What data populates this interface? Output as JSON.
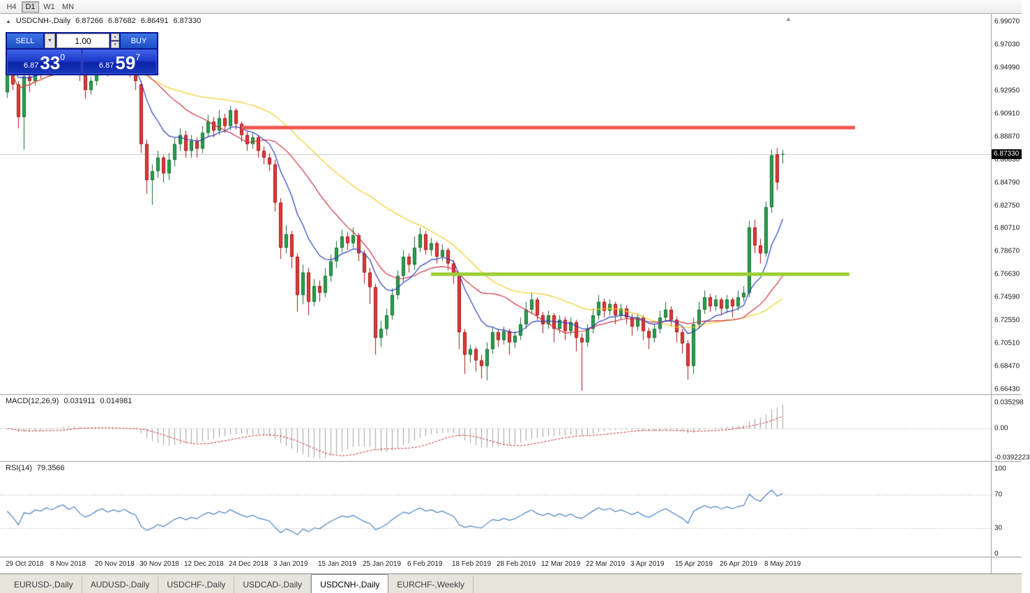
{
  "timeframe_toolbar": {
    "buttons": [
      "H4",
      "D1",
      "W1",
      "MN"
    ],
    "active": "D1"
  },
  "chart_header": {
    "collapse_icon": "▲",
    "title": "USDCNH-,Daily",
    "open": "6.87266",
    "high": "6.87682",
    "low": "6.86491",
    "close": "6.87330"
  },
  "trade_panel": {
    "sell_label": "SELL",
    "buy_label": "BUY",
    "volume": "1.00",
    "dropdown_icon": "▼",
    "spin_up_icon": "▲",
    "spin_down_icon": "▼",
    "sell_quote": "6.87330",
    "buy_quote": "6.87597",
    "sell_price": {
      "prefix": "6.87",
      "big": "33",
      "sup": "0"
    },
    "buy_price": {
      "prefix": "6.87",
      "big": "59",
      "sup": "7"
    }
  },
  "price_axis": {
    "labels": [
      "6.99070",
      "6.97030",
      "6.94990",
      "6.92950",
      "6.90910",
      "6.88870",
      "6.86830",
      "6.84790",
      "6.82750",
      "6.80710",
      "6.78670",
      "6.76630",
      "6.74590",
      "6.72550",
      "6.70510",
      "6.68470",
      "6.66430"
    ],
    "current_price_label": "6.87330"
  },
  "indicators": {
    "macd": {
      "name": "MACD(12,26,9)",
      "value_main": "0.031911",
      "value_signal": "0.014981",
      "axis_labels": [
        "0.035298",
        "0.00",
        "-0.0392223"
      ]
    },
    "rsi": {
      "name": "RSI(14)",
      "value": "79.3566",
      "axis_labels": [
        "100",
        "70",
        "30",
        "0"
      ],
      "levels": [
        70,
        30
      ]
    }
  },
  "date_axis": {
    "labels": [
      "29 Oct 2018",
      "8 Nov 2018",
      "20 Nov 2018",
      "30 Nov 2018",
      "12 Dec 2018",
      "24 Dec 2018",
      "3 Jan 2019",
      "15 Jan 2019",
      "25 Jan 2019",
      "6 Feb 2019",
      "18 Feb 2019",
      "28 Feb 2019",
      "12 Mar 2019",
      "22 Mar 2019",
      "3 Apr 2019",
      "15 Apr 2019",
      "26 Apr 2019",
      "8 May 2019"
    ]
  },
  "chart_shift_icon": "▲",
  "tab_bar": {
    "tabs": [
      "EURUSD-,Daily",
      "AUDUSD-,Daily",
      "USDCHF-,Daily",
      "USDCAD-,Daily",
      "USDCNH-,Daily",
      "EURCHF-,Weekly"
    ],
    "active_index": 4
  },
  "chart_data": {
    "type": "candlestick",
    "symbol": "USDCNH-",
    "timeframe": "Daily",
    "title": "USDCNH-,Daily",
    "last_candle": {
      "open": 6.87266,
      "high": 6.87682,
      "low": 6.86491,
      "close": 6.8733
    },
    "y_range": [
      6.66,
      6.9975
    ],
    "x_labels": [
      "29 Oct 2018",
      "8 Nov 2018",
      "20 Nov 2018",
      "30 Nov 2018",
      "12 Dec 2018",
      "24 Dec 2018",
      "3 Jan 2019",
      "15 Jan 2019",
      "25 Jan 2019",
      "6 Feb 2019",
      "18 Feb 2019",
      "28 Feb 2019",
      "12 Mar 2019",
      "22 Mar 2019",
      "3 Apr 2019",
      "15 Apr 2019",
      "26 Apr 2019",
      "8 May 2019"
    ],
    "colors": {
      "up_fill": "#2aa14c",
      "up_border": "#156e32",
      "down_fill": "#e23a3a",
      "down_border": "#a31515",
      "macd_histogram": "#a2a2a2",
      "macd_signal": "#cc2a2a",
      "rsi_line": "#4a82c4",
      "current_price_line": "#c9c9c9"
    },
    "hlines": [
      {
        "type": "resistance",
        "price": 6.8966,
        "color": "#f2544e",
        "start_index": 42,
        "end_index": 152,
        "thickness": 5
      },
      {
        "type": "support",
        "price": 6.7665,
        "color": "#9acd32",
        "start_index": 76,
        "end_index": 151,
        "thickness": 5
      }
    ],
    "moving_averages": [
      {
        "period": 40,
        "method": "sma",
        "color": "#f0cf25"
      },
      {
        "period": 20,
        "method": "sma",
        "color": "#cc3344"
      },
      {
        "period": 10,
        "method": "ema",
        "color": "#2b3fc0"
      }
    ],
    "macd_params": [
      12,
      26,
      9
    ],
    "rsi_period": 14,
    "candles": [
      [
        6.928,
        6.956,
        6.923,
        6.952
      ],
      [
        6.952,
        6.956,
        6.93,
        6.935
      ],
      [
        6.935,
        6.938,
        6.896,
        6.906
      ],
      [
        6.906,
        6.946,
        6.877,
        6.942
      ],
      [
        6.942,
        6.952,
        6.928,
        6.938
      ],
      [
        6.938,
        6.958,
        6.934,
        6.952
      ],
      [
        6.952,
        6.957,
        6.94,
        6.948
      ],
      [
        6.948,
        6.965,
        6.944,
        6.96
      ],
      [
        6.96,
        6.966,
        6.948,
        6.953
      ],
      [
        6.953,
        6.97,
        6.949,
        6.965
      ],
      [
        6.965,
        6.978,
        6.958,
        6.972
      ],
      [
        6.972,
        6.976,
        6.954,
        6.958
      ],
      [
        6.958,
        6.974,
        6.955,
        6.968
      ],
      [
        6.968,
        6.97,
        6.938,
        6.945
      ],
      [
        6.945,
        6.948,
        6.922,
        6.93
      ],
      [
        6.93,
        6.942,
        6.926,
        6.938
      ],
      [
        6.938,
        6.958,
        6.934,
        6.952
      ],
      [
        6.952,
        6.964,
        6.946,
        6.96
      ],
      [
        6.96,
        6.962,
        6.942,
        6.948
      ],
      [
        6.948,
        6.96,
        6.944,
        6.956
      ],
      [
        6.956,
        6.959,
        6.944,
        6.95
      ],
      [
        6.95,
        6.966,
        6.946,
        6.958
      ],
      [
        6.958,
        6.96,
        6.941,
        6.946
      ],
      [
        6.946,
        6.95,
        6.93,
        6.938
      ],
      [
        6.935,
        6.938,
        6.874,
        6.882
      ],
      [
        6.882,
        6.886,
        6.838,
        6.85
      ],
      [
        6.85,
        6.864,
        6.828,
        6.858
      ],
      [
        6.858,
        6.876,
        6.852,
        6.87
      ],
      [
        6.87,
        6.872,
        6.848,
        6.856
      ],
      [
        6.856,
        6.874,
        6.85,
        6.868
      ],
      [
        6.868,
        6.888,
        6.862,
        6.882
      ],
      [
        6.882,
        6.896,
        6.876,
        6.89
      ],
      [
        6.89,
        6.894,
        6.87,
        6.876
      ],
      [
        6.876,
        6.89,
        6.87,
        6.885
      ],
      [
        6.885,
        6.888,
        6.87,
        6.878
      ],
      [
        6.878,
        6.898,
        6.874,
        6.892
      ],
      [
        6.892,
        6.908,
        6.888,
        6.902
      ],
      [
        6.902,
        6.906,
        6.888,
        6.894
      ],
      [
        6.894,
        6.912,
        6.89,
        6.905
      ],
      [
        6.905,
        6.909,
        6.892,
        6.898
      ],
      [
        6.898,
        6.916,
        6.894,
        6.912
      ],
      [
        6.912,
        6.914,
        6.895,
        6.9
      ],
      [
        6.9,
        6.902,
        6.884,
        6.89
      ],
      [
        6.89,
        6.893,
        6.876,
        6.882
      ],
      [
        6.882,
        6.892,
        6.878,
        6.888
      ],
      [
        6.888,
        6.89,
        6.87,
        6.876
      ],
      [
        6.876,
        6.88,
        6.864,
        6.87
      ],
      [
        6.87,
        6.874,
        6.858,
        6.864
      ],
      [
        6.864,
        6.868,
        6.822,
        6.83
      ],
      [
        6.83,
        6.834,
        6.78,
        6.79
      ],
      [
        6.79,
        6.81,
        6.785,
        6.802
      ],
      [
        6.802,
        6.805,
        6.772,
        6.782
      ],
      [
        6.782,
        6.785,
        6.733,
        6.748
      ],
      [
        6.748,
        6.775,
        6.74,
        6.768
      ],
      [
        6.768,
        6.772,
        6.73,
        6.742
      ],
      [
        6.742,
        6.762,
        6.738,
        6.756
      ],
      [
        6.756,
        6.761,
        6.742,
        6.75
      ],
      [
        6.75,
        6.772,
        6.746,
        6.765
      ],
      [
        6.765,
        6.784,
        6.76,
        6.778
      ],
      [
        6.778,
        6.796,
        6.772,
        6.79
      ],
      [
        6.79,
        6.806,
        6.786,
        6.8
      ],
      [
        6.8,
        6.804,
        6.788,
        6.794
      ],
      [
        6.794,
        6.808,
        6.79,
        6.801
      ],
      [
        6.801,
        6.803,
        6.778,
        6.785
      ],
      [
        6.785,
        6.788,
        6.758,
        6.768
      ],
      [
        6.768,
        6.772,
        6.74,
        6.755
      ],
      [
        6.755,
        6.758,
        6.695,
        6.71
      ],
      [
        6.71,
        6.725,
        6.702,
        6.718
      ],
      [
        6.718,
        6.736,
        6.712,
        6.73
      ],
      [
        6.73,
        6.754,
        6.726,
        6.748
      ],
      [
        6.748,
        6.77,
        6.744,
        6.765
      ],
      [
        6.765,
        6.788,
        6.76,
        6.782
      ],
      [
        6.782,
        6.785,
        6.768,
        6.775
      ],
      [
        6.775,
        6.8,
        6.77,
        6.79
      ],
      [
        6.79,
        6.808,
        6.786,
        6.802
      ],
      [
        6.802,
        6.805,
        6.784,
        6.788
      ],
      [
        6.788,
        6.799,
        6.783,
        6.794
      ],
      [
        6.794,
        6.796,
        6.776,
        6.782
      ],
      [
        6.782,
        6.793,
        6.778,
        6.788
      ],
      [
        6.788,
        6.79,
        6.77,
        6.776
      ],
      [
        6.776,
        6.779,
        6.758,
        6.765
      ],
      [
        6.765,
        6.768,
        6.7,
        6.715
      ],
      [
        6.715,
        6.718,
        6.678,
        6.695
      ],
      [
        6.695,
        6.704,
        6.688,
        6.7
      ],
      [
        6.7,
        6.702,
        6.68,
        6.69
      ],
      [
        6.69,
        6.695,
        6.674,
        6.685
      ],
      [
        6.685,
        6.706,
        6.672,
        6.7
      ],
      [
        6.7,
        6.72,
        6.696,
        6.715
      ],
      [
        6.715,
        6.718,
        6.702,
        6.708
      ],
      [
        6.708,
        6.72,
        6.704,
        6.716
      ],
      [
        6.716,
        6.718,
        6.695,
        6.706
      ],
      [
        6.706,
        6.716,
        6.701,
        6.712
      ],
      [
        6.712,
        6.728,
        6.708,
        6.722
      ],
      [
        6.722,
        6.742,
        6.718,
        6.735
      ],
      [
        6.735,
        6.75,
        6.731,
        6.744
      ],
      [
        6.744,
        6.746,
        6.726,
        6.73
      ],
      [
        6.73,
        6.733,
        6.714,
        6.722
      ],
      [
        6.722,
        6.734,
        6.718,
        6.73
      ],
      [
        6.73,
        6.732,
        6.706,
        6.718
      ],
      [
        6.718,
        6.73,
        6.714,
        6.726
      ],
      [
        6.726,
        6.729,
        6.708,
        6.716
      ],
      [
        6.716,
        6.728,
        6.712,
        6.724
      ],
      [
        6.724,
        6.726,
        6.698,
        6.71
      ],
      [
        6.71,
        6.714,
        6.663,
        6.706
      ],
      [
        6.706,
        6.722,
        6.702,
        6.718
      ],
      [
        6.718,
        6.736,
        6.714,
        6.73
      ],
      [
        6.73,
        6.748,
        6.726,
        6.742
      ],
      [
        6.742,
        6.745,
        6.728,
        6.734
      ],
      [
        6.734,
        6.744,
        6.73,
        6.74
      ],
      [
        6.74,
        6.742,
        6.722,
        6.73
      ],
      [
        6.73,
        6.74,
        6.726,
        6.736
      ],
      [
        6.736,
        6.739,
        6.722,
        6.728
      ],
      [
        6.728,
        6.731,
        6.712,
        6.72
      ],
      [
        6.72,
        6.732,
        6.716,
        6.728
      ],
      [
        6.728,
        6.73,
        6.708,
        6.716
      ],
      [
        6.716,
        6.719,
        6.7,
        6.71
      ],
      [
        6.71,
        6.722,
        6.706,
        6.718
      ],
      [
        6.718,
        6.734,
        6.714,
        6.728
      ],
      [
        6.728,
        6.742,
        6.724,
        6.735
      ],
      [
        6.735,
        6.738,
        6.72,
        6.726
      ],
      [
        6.726,
        6.729,
        6.706,
        6.715
      ],
      [
        6.715,
        6.718,
        6.696,
        6.705
      ],
      [
        6.705,
        6.708,
        6.673,
        6.685
      ],
      [
        6.685,
        6.728,
        6.678,
        6.722
      ],
      [
        6.722,
        6.742,
        6.718,
        6.735
      ],
      [
        6.735,
        6.752,
        6.731,
        6.746
      ],
      [
        6.746,
        6.749,
        6.733,
        6.738
      ],
      [
        6.738,
        6.748,
        6.734,
        6.744
      ],
      [
        6.744,
        6.746,
        6.73,
        6.736
      ],
      [
        6.736,
        6.748,
        6.732,
        6.744
      ],
      [
        6.744,
        6.746,
        6.728,
        6.738
      ],
      [
        6.738,
        6.752,
        6.734,
        6.746
      ],
      [
        6.746,
        6.756,
        6.742,
        6.75
      ],
      [
        6.75,
        6.814,
        6.746,
        6.808
      ],
      [
        6.808,
        6.815,
        6.785,
        6.792
      ],
      [
        6.792,
        6.798,
        6.776,
        6.785
      ],
      [
        6.785,
        6.831,
        6.782,
        6.826
      ],
      [
        6.826,
        6.877,
        6.821,
        6.872
      ],
      [
        6.873,
        6.8785,
        6.841,
        6.848
      ],
      [
        6.87266,
        6.87682,
        6.86491,
        6.8733
      ]
    ]
  }
}
